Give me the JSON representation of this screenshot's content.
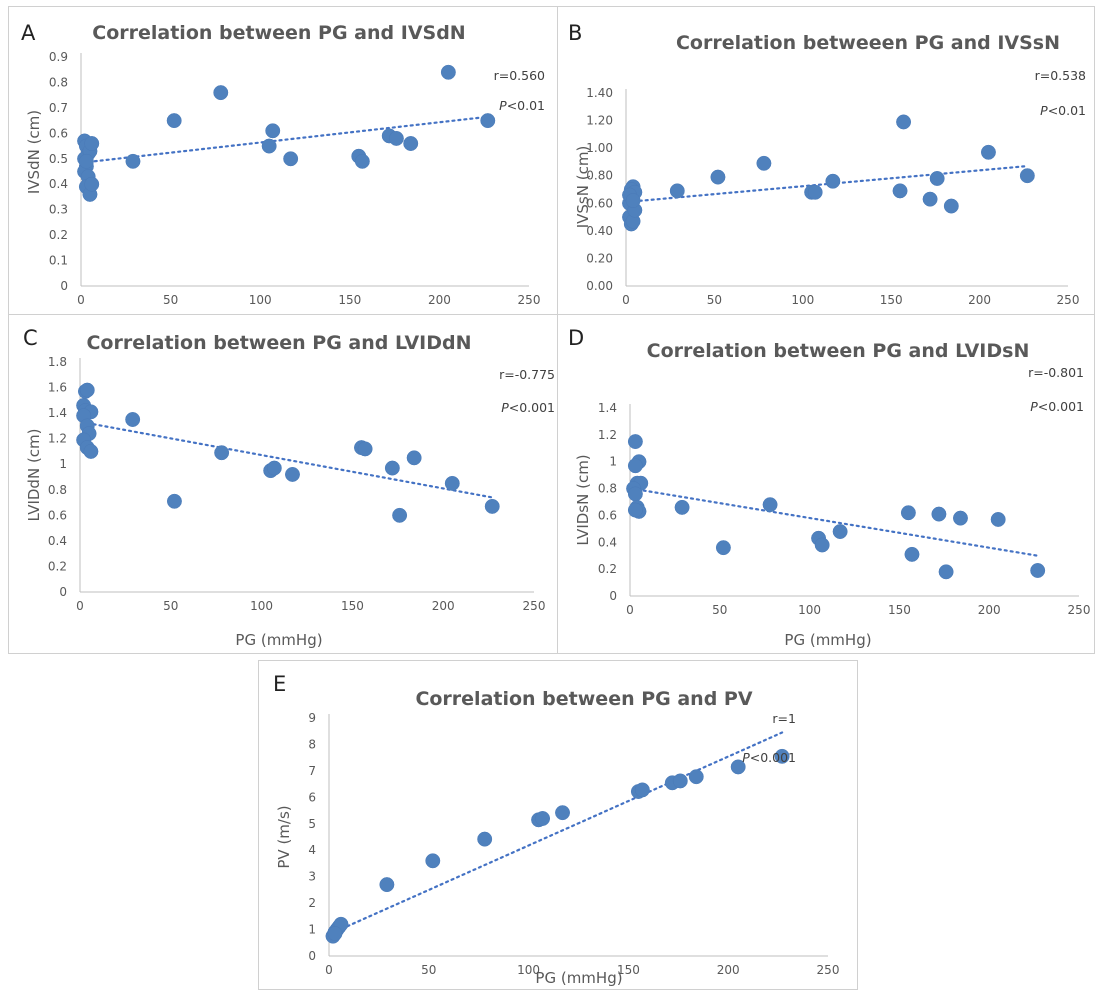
{
  "colors": {
    "marker": "#4f81bd",
    "trendline": "#4472c4",
    "text": "#595959"
  },
  "chart_data": [
    {
      "id": "A",
      "letter": "A",
      "type": "scatter",
      "title": "Correlation between PG and IVSdN",
      "xlabel": "",
      "ylabel": "IVSdN (cm)",
      "xlim": [
        0,
        250
      ],
      "ylim": [
        0,
        0.9
      ],
      "xticks": [
        "0",
        "50",
        "100",
        "150",
        "200",
        "250"
      ],
      "yticks": [
        "0",
        "0.1",
        "0.2",
        "0.3",
        "0.4",
        "0.5",
        "0.6",
        "0.7",
        "0.8",
        "0.9"
      ],
      "annotation_r": "r=0.560",
      "annotation_p_symbol": "P",
      "annotation_p_value": "<0.01",
      "trendline": [
        [
          1,
          0.485
        ],
        [
          227,
          0.665
        ]
      ],
      "points": [
        [
          2,
          0.57
        ],
        [
          3,
          0.55
        ],
        [
          4,
          0.52
        ],
        [
          2,
          0.5
        ],
        [
          3,
          0.47
        ],
        [
          2,
          0.45
        ],
        [
          4,
          0.43
        ],
        [
          3,
          0.39
        ],
        [
          5,
          0.36
        ],
        [
          6,
          0.4
        ],
        [
          5,
          0.53
        ],
        [
          6,
          0.56
        ],
        [
          3,
          0.49
        ],
        [
          29,
          0.49
        ],
        [
          52,
          0.65
        ],
        [
          78,
          0.76
        ],
        [
          105,
          0.55
        ],
        [
          107,
          0.61
        ],
        [
          117,
          0.5
        ],
        [
          155,
          0.51
        ],
        [
          157,
          0.49
        ],
        [
          172,
          0.59
        ],
        [
          176,
          0.58
        ],
        [
          184,
          0.56
        ],
        [
          205,
          0.84
        ],
        [
          227,
          0.65
        ]
      ]
    },
    {
      "id": "B",
      "letter": "B",
      "type": "scatter",
      "title": "Correlation betweeen PG and IVSsN",
      "xlabel": "",
      "ylabel": "IVSsN (cm)",
      "xlim": [
        0,
        250
      ],
      "ylim": [
        0,
        1.4
      ],
      "xticks": [
        "0",
        "50",
        "100",
        "150",
        "200",
        "250"
      ],
      "yticks": [
        "0.00",
        "0.20",
        "0.40",
        "0.60",
        "0.80",
        "1.00",
        "1.20",
        "1.40"
      ],
      "annotation_r": "r=0.538",
      "annotation_p_symbol": "P",
      "annotation_p_value": "<0.01",
      "trendline": [
        [
          1,
          0.61
        ],
        [
          227,
          0.87
        ]
      ],
      "points": [
        [
          2,
          0.5
        ],
        [
          3,
          0.45
        ],
        [
          4,
          0.47
        ],
        [
          2,
          0.6
        ],
        [
          3,
          0.65
        ],
        [
          5,
          0.55
        ],
        [
          4,
          0.72
        ],
        [
          3,
          0.7
        ],
        [
          5,
          0.68
        ],
        [
          2,
          0.66
        ],
        [
          4,
          0.62
        ],
        [
          29,
          0.69
        ],
        [
          52,
          0.79
        ],
        [
          78,
          0.89
        ],
        [
          105,
          0.68
        ],
        [
          107,
          0.68
        ],
        [
          117,
          0.76
        ],
        [
          155,
          0.69
        ],
        [
          157,
          1.19
        ],
        [
          172,
          0.63
        ],
        [
          176,
          0.78
        ],
        [
          184,
          0.58
        ],
        [
          205,
          0.97
        ],
        [
          227,
          0.8
        ]
      ]
    },
    {
      "id": "C",
      "letter": "C",
      "type": "scatter",
      "title": "Correlation between PG and LVIDdN",
      "xlabel": "PG (mmHg)",
      "ylabel": "LVIDdN (cm)",
      "xlim": [
        0,
        250
      ],
      "ylim": [
        0,
        1.8
      ],
      "xticks": [
        "0",
        "50",
        "100",
        "150",
        "200",
        "250"
      ],
      "yticks": [
        "0",
        "0.2",
        "0.4",
        "0.6",
        "0.8",
        "1",
        "1.2",
        "1.4",
        "1.6",
        "1.8"
      ],
      "annotation_r": "r=-0.775",
      "annotation_p_symbol": "P",
      "annotation_p_value": "<0.001",
      "trendline": [
        [
          1,
          1.33
        ],
        [
          227,
          0.74
        ]
      ],
      "points": [
        [
          3,
          1.57
        ],
        [
          4,
          1.58
        ],
        [
          2,
          1.46
        ],
        [
          3,
          1.42
        ],
        [
          6,
          1.41
        ],
        [
          2,
          1.38
        ],
        [
          4,
          1.3
        ],
        [
          5,
          1.24
        ],
        [
          2,
          1.19
        ],
        [
          4,
          1.13
        ],
        [
          6,
          1.1
        ],
        [
          29,
          1.35
        ],
        [
          52,
          0.71
        ],
        [
          78,
          1.09
        ],
        [
          105,
          0.95
        ],
        [
          107,
          0.97
        ],
        [
          117,
          0.92
        ],
        [
          155,
          1.13
        ],
        [
          157,
          1.12
        ],
        [
          172,
          0.97
        ],
        [
          176,
          0.6
        ],
        [
          184,
          1.05
        ],
        [
          205,
          0.85
        ],
        [
          227,
          0.67
        ]
      ]
    },
    {
      "id": "D",
      "letter": "D",
      "type": "scatter",
      "title": "Correlation between PG and LVIDsN",
      "xlabel": "PG (mmHg)",
      "ylabel": "LVIDsN (cm)",
      "xlim": [
        0,
        250
      ],
      "ylim": [
        0,
        1.4
      ],
      "xticks": [
        "0",
        "50",
        "100",
        "150",
        "200",
        "250"
      ],
      "yticks": [
        "0",
        "0.2",
        "0.4",
        "0.6",
        "0.8",
        "1",
        "1.2",
        "1.4"
      ],
      "annotation_r": "r=-0.801",
      "annotation_p_symbol": "P",
      "annotation_p_value": "<0.001",
      "trendline": [
        [
          1,
          0.8
        ],
        [
          227,
          0.3
        ]
      ],
      "points": [
        [
          3,
          1.15
        ],
        [
          5,
          1.0
        ],
        [
          3,
          0.97
        ],
        [
          4,
          0.84
        ],
        [
          6,
          0.84
        ],
        [
          2,
          0.8
        ],
        [
          3,
          0.76
        ],
        [
          4,
          0.66
        ],
        [
          5,
          0.63
        ],
        [
          3,
          0.64
        ],
        [
          29,
          0.66
        ],
        [
          52,
          0.36
        ],
        [
          78,
          0.68
        ],
        [
          105,
          0.43
        ],
        [
          107,
          0.38
        ],
        [
          117,
          0.48
        ],
        [
          155,
          0.62
        ],
        [
          157,
          0.31
        ],
        [
          172,
          0.61
        ],
        [
          176,
          0.18
        ],
        [
          184,
          0.58
        ],
        [
          205,
          0.57
        ],
        [
          227,
          0.19
        ]
      ]
    },
    {
      "id": "E",
      "letter": "E",
      "type": "scatter",
      "title": "Correlation between PG and PV",
      "xlabel": "PG (mmHg)",
      "ylabel": "PV (m/s)",
      "xlim": [
        0,
        250
      ],
      "ylim": [
        0,
        9
      ],
      "xticks": [
        "0",
        "50",
        "100",
        "150",
        "200",
        "250"
      ],
      "yticks": [
        "0",
        "1",
        "2",
        "3",
        "4",
        "5",
        "6",
        "7",
        "8",
        "9"
      ],
      "annotation_r": "r=1",
      "annotation_p_symbol": "P",
      "annotation_p_value": "<0.001",
      "trendline": [
        [
          1,
          0.85
        ],
        [
          227,
          8.45
        ]
      ],
      "points": [
        [
          2,
          0.75
        ],
        [
          3,
          0.9
        ],
        [
          4,
          1.0
        ],
        [
          5,
          1.1
        ],
        [
          6,
          1.2
        ],
        [
          3,
          0.85
        ],
        [
          29,
          2.7
        ],
        [
          52,
          3.6
        ],
        [
          78,
          4.42
        ],
        [
          105,
          5.15
        ],
        [
          107,
          5.2
        ],
        [
          117,
          5.42
        ],
        [
          155,
          6.22
        ],
        [
          157,
          6.28
        ],
        [
          172,
          6.55
        ],
        [
          176,
          6.62
        ],
        [
          184,
          6.78
        ],
        [
          205,
          7.15
        ],
        [
          227,
          7.55
        ]
      ]
    }
  ]
}
